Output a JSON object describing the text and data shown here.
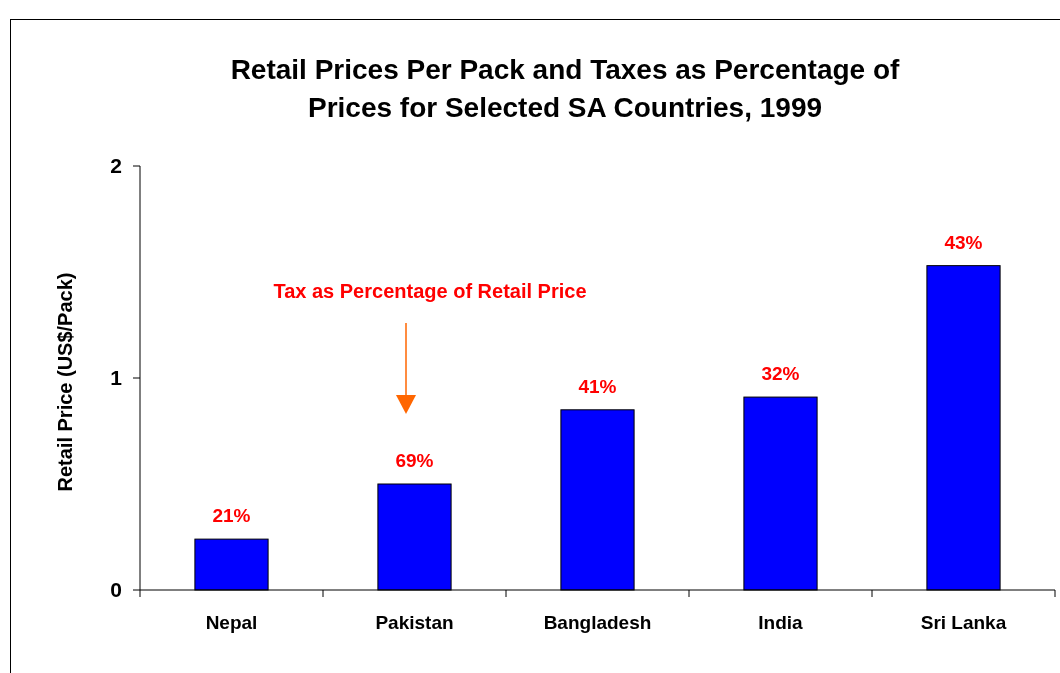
{
  "chart_data": {
    "type": "bar",
    "title": "Retail Prices Per Pack and Taxes as Percentage of\nPrices for Selected SA Countries, 1999",
    "ylabel": "Retail Price (US$/Pack)",
    "categories": [
      "Nepal",
      "Pakistan",
      "Bangladesh",
      "India",
      "Sri Lanka"
    ],
    "values": [
      0.24,
      0.5,
      0.85,
      0.91,
      1.53
    ],
    "color": "#0000ff",
    "ylim": [
      0,
      2
    ],
    "yticks": [
      0,
      1,
      2
    ],
    "grid": false,
    "annotations": [
      "Tax as Percentage of Retail Price",
      {
        "text": "21%",
        "x": "Nepal",
        "y": 0.24
      },
      {
        "text": "69%",
        "x": "Pakistan",
        "y": 0.5
      },
      {
        "text": "41%",
        "x": "Bangladesh",
        "y": 0.85
      },
      {
        "text": "32%",
        "x": "India",
        "y": 0.91
      },
      {
        "text": "43%",
        "x": "Sri Lanka",
        "y": 1.53
      }
    ]
  }
}
